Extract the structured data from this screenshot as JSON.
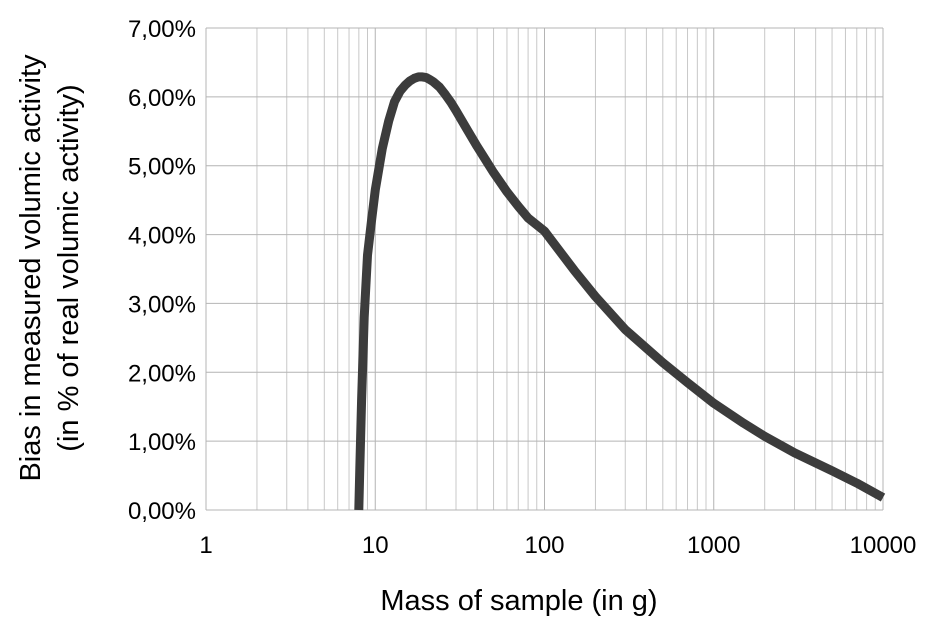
{
  "chart_data": {
    "type": "line",
    "title": "",
    "xlabel": "Mass of sample (in g)",
    "ylabel": "Bias in measured volumic activity",
    "ylabel_line2": "(in % of real volumic activity)",
    "x_scale": "log",
    "xlim": [
      1,
      10000
    ],
    "ylim": [
      0,
      0.07
    ],
    "grid": true,
    "legend": "none",
    "x_ticks": [
      {
        "value": 1,
        "label": "1"
      },
      {
        "value": 10,
        "label": "10"
      },
      {
        "value": 100,
        "label": "100"
      },
      {
        "value": 1000,
        "label": "1000"
      },
      {
        "value": 10000,
        "label": "10000"
      }
    ],
    "y_ticks": [
      {
        "value": 0,
        "label": "0,00%"
      },
      {
        "value": 0.01,
        "label": "1,00%"
      },
      {
        "value": 0.02,
        "label": "2,00%"
      },
      {
        "value": 0.03,
        "label": "3,00%"
      },
      {
        "value": 0.04,
        "label": "4,00%"
      },
      {
        "value": 0.05,
        "label": "5,00%"
      },
      {
        "value": 0.06,
        "label": "6,00%"
      },
      {
        "value": 0.07,
        "label": "7,00%"
      }
    ],
    "series": [
      {
        "color": "#3c3c3c",
        "x": [
          8,
          8.1,
          8.3,
          8.6,
          9,
          9.5,
          10,
          11,
          12,
          13,
          14,
          15,
          16,
          17,
          18,
          19,
          20,
          21,
          22,
          24,
          26,
          28,
          30,
          35,
          40,
          45,
          50,
          60,
          70,
          80,
          100,
          150,
          200,
          300,
          500,
          700,
          1000,
          1500,
          2000,
          3000,
          5000,
          7000,
          10000
        ],
        "y": [
          0.0,
          0.006,
          0.016,
          0.028,
          0.037,
          0.042,
          0.0465,
          0.0525,
          0.0565,
          0.0593,
          0.0608,
          0.0617,
          0.0623,
          0.0627,
          0.0629,
          0.0629,
          0.0628,
          0.0625,
          0.0622,
          0.0614,
          0.0603,
          0.0592,
          0.058,
          0.0552,
          0.0528,
          0.0508,
          0.049,
          0.0462,
          0.0441,
          0.0424,
          0.0405,
          0.0348,
          0.031,
          0.0262,
          0.0214,
          0.0185,
          0.0155,
          0.0126,
          0.0107,
          0.0083,
          0.0057,
          0.0039,
          0.0018
        ]
      }
    ]
  }
}
